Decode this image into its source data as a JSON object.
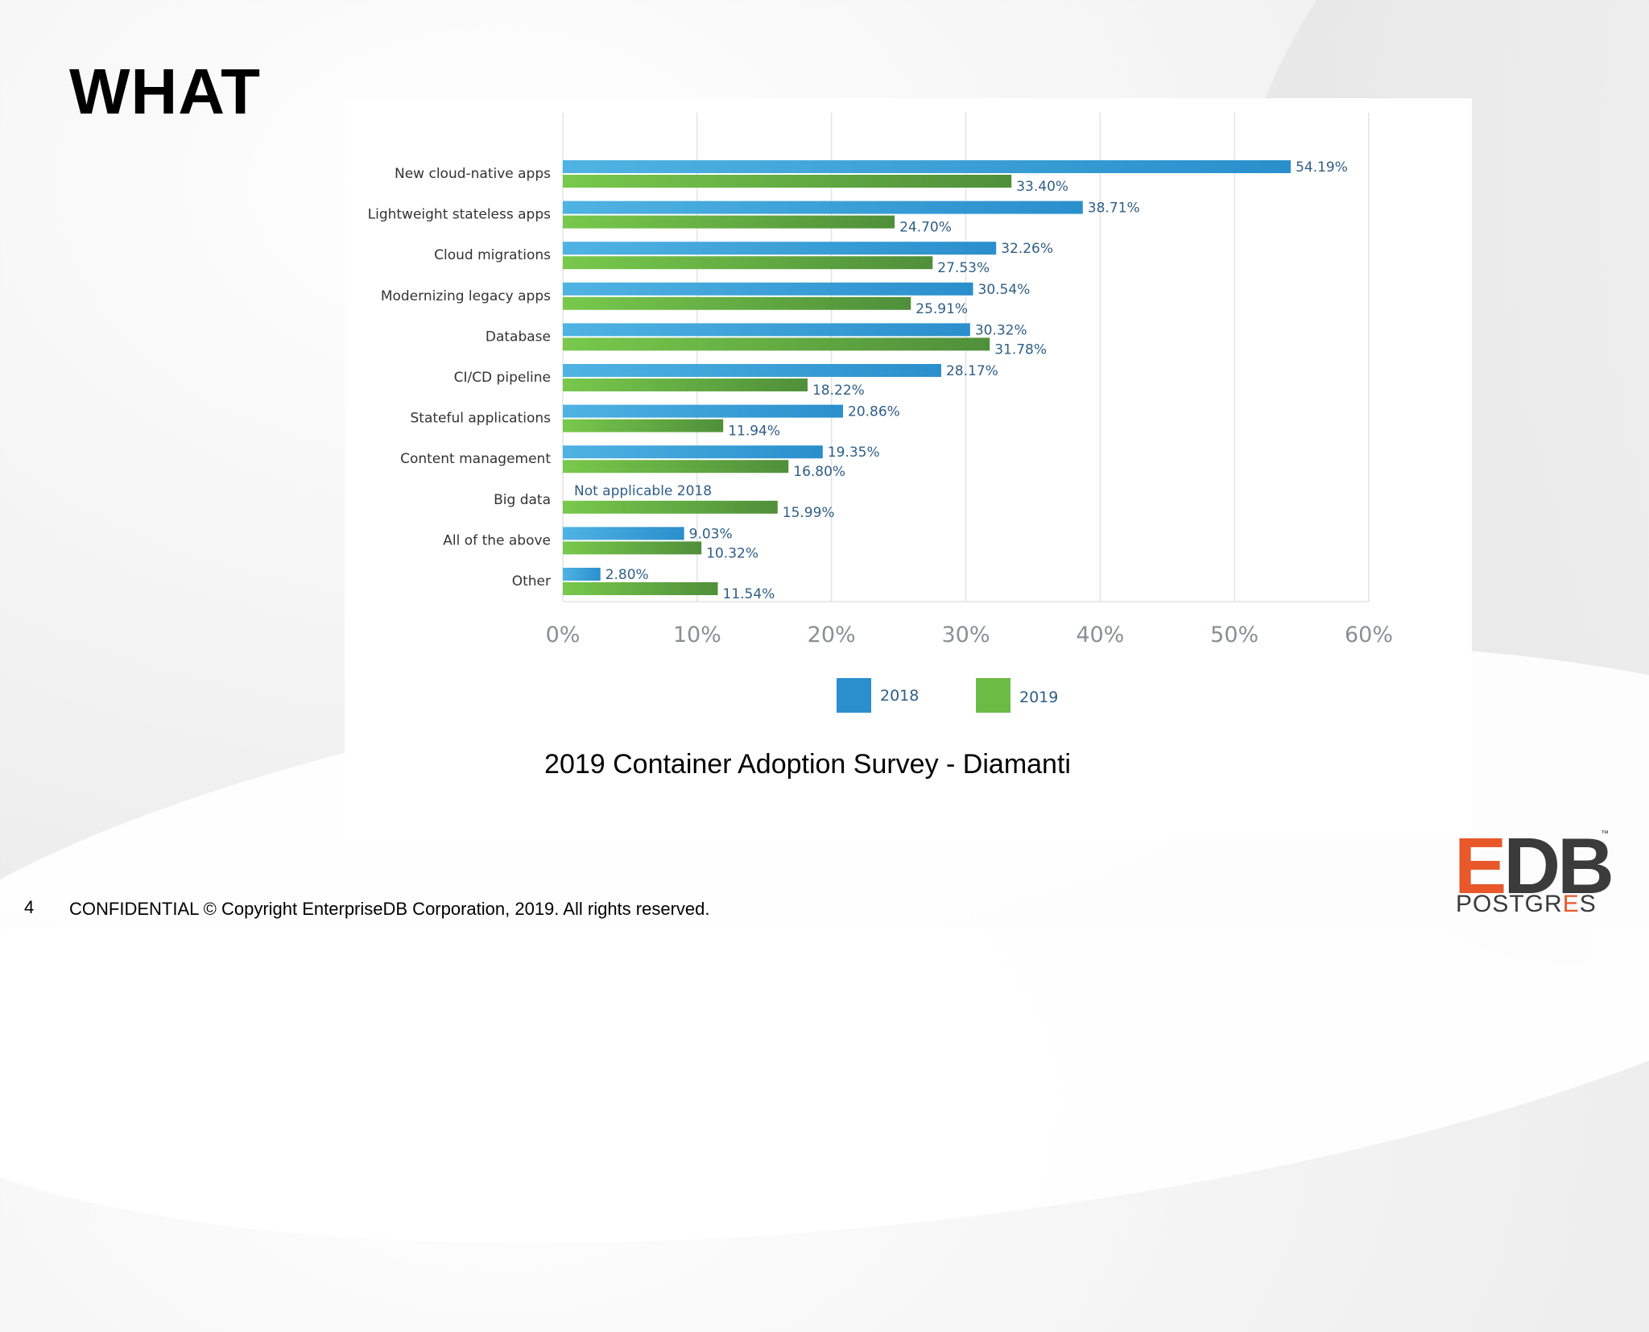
{
  "slide": {
    "title": "WHAT",
    "caption": "2019 Container Adoption Survey - Diamanti",
    "page_number": "4",
    "footer": "CONFIDENTIAL © Copyright EnterpriseDB Corporation, 2019. All rights reserved.",
    "logo": {
      "top": "EDB",
      "trademark": "™",
      "bottom": "POSTGRES"
    }
  },
  "colors": {
    "series_2018": "#2a8fcc",
    "series_2019": "#6cbb45"
  },
  "chart_data": {
    "type": "bar",
    "orientation": "horizontal",
    "title": "",
    "xlabel": "",
    "ylabel": "",
    "xlim": [
      0,
      60
    ],
    "x_ticks": [
      0,
      10,
      20,
      30,
      40,
      50,
      60
    ],
    "x_tick_labels": [
      "0%",
      "10%",
      "20%",
      "30%",
      "40%",
      "50%",
      "60%"
    ],
    "categories": [
      "New cloud-native apps",
      "Lightweight stateless apps",
      "Cloud migrations",
      "Modernizing legacy apps",
      "Database",
      "CI/CD pipeline",
      "Stateful applications",
      "Content management",
      "Big data",
      "All of the above",
      "Other"
    ],
    "series": [
      {
        "name": "2018",
        "values": [
          54.19,
          38.71,
          32.26,
          30.54,
          30.32,
          28.17,
          20.86,
          19.35,
          null,
          9.03,
          2.8
        ],
        "labels": [
          "54.19%",
          "38.71%",
          "32.26%",
          "30.54%",
          "30.32%",
          "28.17%",
          "20.86%",
          "19.35%",
          null,
          "9.03%",
          "2.80%"
        ]
      },
      {
        "name": "2019",
        "values": [
          33.4,
          24.7,
          27.53,
          25.91,
          31.78,
          18.22,
          11.94,
          16.8,
          15.99,
          10.32,
          11.54
        ],
        "labels": [
          "33.40%",
          "24.70%",
          "27.53%",
          "25.91%",
          "31.78%",
          "18.22%",
          "11.94%",
          "16.80%",
          "15.99%",
          "10.32%",
          "11.54%"
        ]
      }
    ],
    "annotations": [
      {
        "category": "Big data",
        "text": "Not applicable 2018"
      }
    ],
    "grid": true,
    "legend": "bottom-center"
  }
}
